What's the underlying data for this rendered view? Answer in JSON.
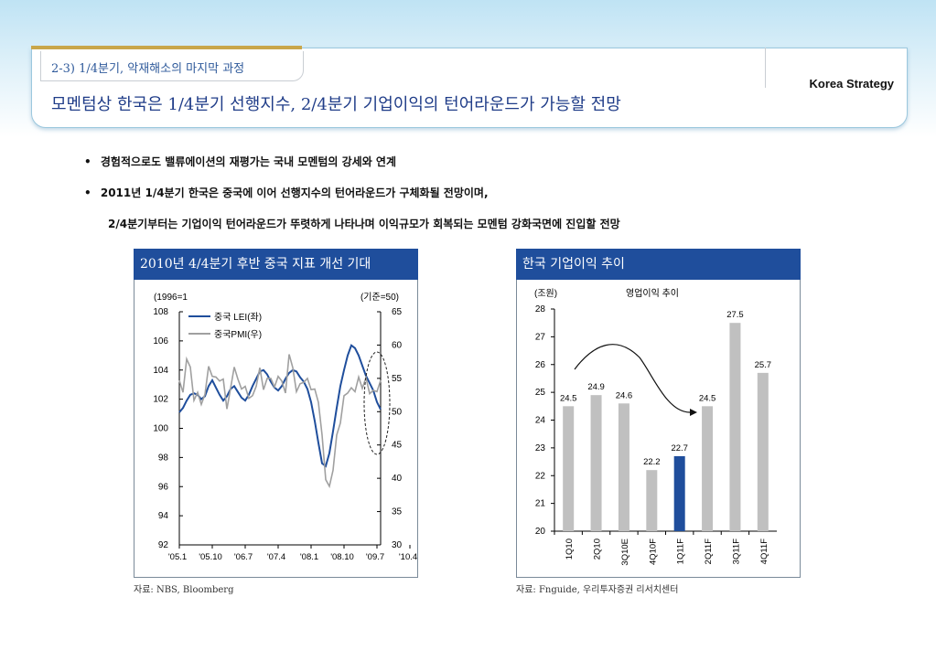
{
  "header": {
    "section_label": "2-3) 1/4분기, 악재해소의 마지막 과정",
    "title": "모멘텀상 한국은 1/4분기 선행지수, 2/4분기 기업이익의 턴어라운드가 가능할 전망",
    "brand": "Korea Strategy"
  },
  "bullets": [
    {
      "text": "경험적으로도 밸류에이션의 재평가는 국내 모멘텀의 강세와 연계"
    },
    {
      "text": "2011년 1/4분기 한국은 중국에 이어 선행지수의 턴어라운드가 구체화될 전망이며,"
    },
    {
      "text": "2/4분기부터는 기업이익 턴어라운드가 뚜렷하게 나타나며 이익규모가 회복되는 모멘텀 강화국면에 진입할 전망"
    }
  ],
  "bullet_mark": "•",
  "colors": {
    "title_blue": "#1f3c88",
    "panel_blue": "#1f4e9c",
    "lei_line": "#1f4e9c",
    "pmi_line": "#a0a0a0",
    "bar_gray": "#c0c0c0",
    "bar_highlight": "#1f4e9c"
  },
  "chart_data": [
    {
      "type": "line",
      "panel_title": "2010년 4/4분기 후반 중국 지표 개선 기대",
      "left_axis_unit": "(1996=1",
      "right_axis_unit": "(기준=50)",
      "ylim_left": [
        92,
        108
      ],
      "ylim_right": [
        30,
        65
      ],
      "left_ticks": [
        "108",
        "106",
        "104",
        "102",
        "100",
        "98",
        "96",
        "94",
        "92"
      ],
      "right_ticks": [
        "65",
        "60",
        "55",
        "50",
        "45",
        "40",
        "35",
        "30"
      ],
      "x_ticks": [
        "'05.1",
        "'05.10",
        "'06.7",
        "'07.4",
        "'08.1",
        "'08.10",
        "'09.7",
        "'10.4"
      ],
      "series": [
        {
          "name": "중국 LEI(좌)",
          "axis": "left",
          "color": "#1f4e9c",
          "values": [
            101.1,
            101.4,
            101.9,
            102.3,
            102.4,
            102.3,
            102.0,
            102.2,
            102.9,
            103.3,
            102.8,
            102.3,
            101.9,
            102.2,
            102.7,
            102.9,
            102.5,
            102.1,
            101.9,
            102.3,
            102.9,
            103.4,
            103.9,
            104.0,
            103.7,
            103.2,
            102.8,
            102.6,
            102.9,
            103.4,
            103.8,
            104.0,
            103.9,
            103.5,
            103.2,
            102.7,
            101.8,
            100.5,
            99.0,
            97.6,
            97.4,
            98.3,
            99.8,
            101.4,
            102.9,
            104.0,
            105.0,
            105.7,
            105.5,
            105.0,
            104.3,
            103.6,
            103.1,
            102.6,
            101.8,
            101.3
          ],
          "source_note": "digitized estimate, 56 monthly points from 2005.1"
        },
        {
          "name": "중국PMI(우)",
          "axis": "right",
          "color": "#a0a0a0",
          "values": [
            54.7,
            52.9,
            57.9,
            56.7,
            51.7,
            52.9,
            51.1,
            52.6,
            56.8,
            55.3,
            55.2,
            54.6,
            54.9,
            50.4,
            53.5,
            56.7,
            54.9,
            53.4,
            53.8,
            52.0,
            52.4,
            53.8,
            56.6,
            53.3,
            55.0,
            55.0,
            53.7,
            55.3,
            54.6,
            52.8,
            58.6,
            56.6,
            53.0,
            54.2,
            54.4,
            55.0,
            53.3,
            53.4,
            51.4,
            46.5,
            39.8,
            38.8,
            41.2,
            46.5,
            48.3,
            52.4,
            52.8,
            53.6,
            53.0,
            55.2,
            53.5,
            55.1,
            52.7,
            53.2,
            53.0,
            54.7
          ],
          "source_note": "digitized estimate"
        }
      ],
      "annotation": "dashed ellipse highlighting late-2010 turnaround"
    },
    {
      "type": "bar",
      "panel_title": "한국 기업이익 추이",
      "unit": "(조원)",
      "subtitle": "영업이익 추이",
      "ylim": [
        20,
        28
      ],
      "y_ticks": [
        "28",
        "27",
        "26",
        "25",
        "24",
        "23",
        "22",
        "21",
        "20"
      ],
      "categories": [
        "1Q10",
        "2Q10",
        "3Q10E",
        "4Q10F",
        "1Q11F",
        "2Q11F",
        "3Q11F",
        "4Q11F"
      ],
      "values": [
        24.5,
        24.9,
        24.6,
        22.2,
        22.7,
        24.5,
        27.5,
        25.7
      ],
      "value_labels": [
        "24.5",
        "24.9",
        "24.6",
        "22.2",
        "22.7",
        "24.5",
        "27.5",
        "25.7"
      ],
      "highlight_index": 4,
      "annotation": "curved arrow from 1Q10 to 1Q11F"
    }
  ],
  "sources": {
    "left": "자료: NBS, Bloomberg",
    "right": "자료: Fnguide, 우리투자증권 리서치센터"
  }
}
